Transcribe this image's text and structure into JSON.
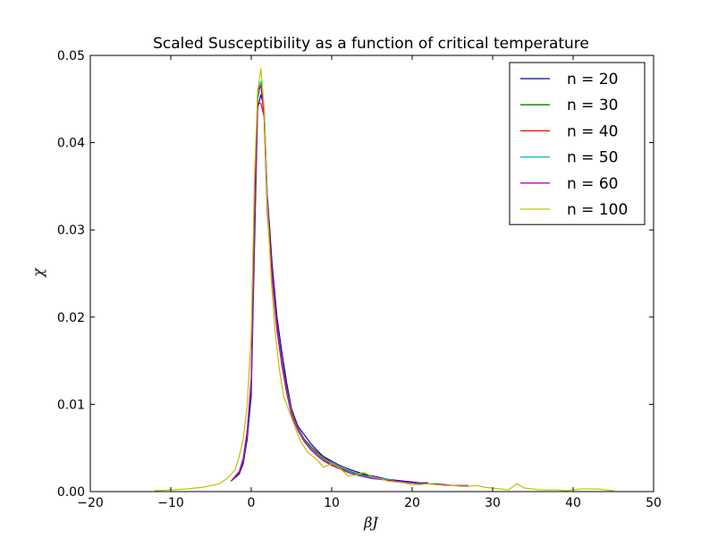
{
  "chart_data": {
    "type": "line",
    "title": "Scaled Susceptibility as a function of critical temperature",
    "xlabel": "βJ",
    "ylabel": "χ",
    "xlim": [
      -20,
      50
    ],
    "ylim": [
      0,
      0.05
    ],
    "xticks": [
      -20,
      -10,
      0,
      10,
      20,
      30,
      40,
      50
    ],
    "yticks": [
      0.0,
      0.01,
      0.02,
      0.03,
      0.04,
      0.05
    ],
    "xtick_labels": [
      "−20",
      "−10",
      "0",
      "10",
      "20",
      "30",
      "40",
      "50"
    ],
    "ytick_labels": [
      "0.00",
      "0.01",
      "0.02",
      "0.03",
      "0.04",
      "0.05"
    ],
    "grid": false,
    "legend_position": "top-right",
    "series": [
      {
        "name": "n = 20",
        "color": "#0000bf",
        "x": [
          -2.5,
          -1.5,
          -1,
          -0.5,
          0,
          0.4,
          0.8,
          1.2,
          1.6,
          2,
          2.6,
          3.2,
          3.8,
          4.4,
          5,
          5.8,
          6.6,
          7.4,
          8.2,
          9,
          10,
          11,
          12,
          13,
          14,
          15,
          16,
          17,
          18,
          19,
          20,
          21,
          22
        ],
        "y": [
          0.0012,
          0.002,
          0.0032,
          0.006,
          0.011,
          0.028,
          0.044,
          0.0455,
          0.044,
          0.034,
          0.026,
          0.02,
          0.016,
          0.0125,
          0.0095,
          0.0075,
          0.0065,
          0.0055,
          0.0047,
          0.004,
          0.0035,
          0.003,
          0.0026,
          0.0023,
          0.002,
          0.0018,
          0.0016,
          0.0014,
          0.0013,
          0.0012,
          0.0011,
          0.001,
          0.001
        ]
      },
      {
        "name": "n = 30",
        "color": "#008000",
        "x": [
          -2.5,
          -1.5,
          -1,
          -0.5,
          0,
          0.4,
          0.8,
          1.2,
          1.6,
          2,
          2.6,
          3.2,
          3.8,
          4.4,
          5,
          5.8,
          6.6,
          7.4,
          8.2,
          9,
          10,
          11,
          12,
          13,
          14,
          15,
          16,
          17,
          18,
          19,
          20,
          21,
          22,
          23,
          24
        ],
        "y": [
          0.0012,
          0.0022,
          0.0035,
          0.0065,
          0.012,
          0.03,
          0.045,
          0.047,
          0.044,
          0.033,
          0.025,
          0.019,
          0.015,
          0.012,
          0.0093,
          0.0073,
          0.006,
          0.0052,
          0.0045,
          0.0039,
          0.0033,
          0.0028,
          0.0024,
          0.0021,
          0.0019,
          0.0017,
          0.0015,
          0.0014,
          0.0012,
          0.0011,
          0.001,
          0.001,
          0.0009,
          0.0009,
          0.0008
        ]
      },
      {
        "name": "n = 40",
        "color": "#ff0000",
        "x": [
          -2.5,
          -1.5,
          -1,
          -0.5,
          0,
          0.4,
          0.8,
          1.2,
          1.6,
          2,
          2.6,
          3.2,
          3.8,
          4.4,
          5,
          5.8,
          6.6,
          7.4,
          8.2,
          9,
          10,
          11,
          12,
          13,
          14,
          15,
          16,
          17,
          18,
          19,
          20,
          21,
          22,
          23,
          24,
          25,
          26
        ],
        "y": [
          0.0012,
          0.0022,
          0.0036,
          0.0068,
          0.0125,
          0.031,
          0.0445,
          0.0445,
          0.043,
          0.033,
          0.025,
          0.019,
          0.0148,
          0.0118,
          0.0092,
          0.0072,
          0.0059,
          0.005,
          0.0043,
          0.0037,
          0.0031,
          0.0027,
          0.0023,
          0.002,
          0.0018,
          0.0016,
          0.0014,
          0.0013,
          0.0012,
          0.0011,
          0.001,
          0.0009,
          0.0009,
          0.0008,
          0.0008,
          0.0007,
          0.0007
        ]
      },
      {
        "name": "n = 50",
        "color": "#00bfbf",
        "x": [
          -2.5,
          -1.5,
          -1,
          -0.5,
          0,
          0.4,
          0.8,
          1.2,
          1.6,
          2,
          2.6,
          3.2,
          3.8,
          4.4,
          5,
          5.8,
          6.6,
          7.4,
          8.2,
          9,
          10,
          11,
          12,
          13,
          14,
          15,
          16,
          17,
          18,
          19,
          20,
          21,
          22,
          23,
          24,
          25,
          26,
          27
        ],
        "y": [
          0.0012,
          0.0023,
          0.0038,
          0.007,
          0.013,
          0.032,
          0.046,
          0.047,
          0.0435,
          0.032,
          0.024,
          0.0185,
          0.0145,
          0.0115,
          0.009,
          0.0071,
          0.0058,
          0.0049,
          0.0042,
          0.0036,
          0.003,
          0.0026,
          0.0023,
          0.002,
          0.0018,
          0.0016,
          0.0015,
          0.0014,
          0.0012,
          0.0011,
          0.001,
          0.0009,
          0.0009,
          0.0008,
          0.0008,
          0.0007,
          0.0007,
          0.0007
        ]
      },
      {
        "name": "n = 60",
        "color": "#bf00bf",
        "x": [
          -2.5,
          -1.5,
          -1,
          -0.5,
          0,
          0.4,
          0.8,
          1.2,
          1.6,
          2,
          2.6,
          3.2,
          3.8,
          4.4,
          5,
          5.8,
          6.6,
          7.4,
          8.2,
          9,
          10,
          11,
          12,
          13,
          14,
          15,
          16,
          17,
          18,
          19,
          20,
          21,
          22,
          23,
          24,
          25,
          26,
          27
        ],
        "y": [
          0.0012,
          0.0023,
          0.0038,
          0.007,
          0.013,
          0.032,
          0.046,
          0.0465,
          0.043,
          0.032,
          0.0245,
          0.0185,
          0.0145,
          0.0113,
          0.0088,
          0.007,
          0.0057,
          0.0048,
          0.0041,
          0.0035,
          0.003,
          0.0026,
          0.0022,
          0.0019,
          0.0017,
          0.0015,
          0.0014,
          0.0013,
          0.0012,
          0.0011,
          0.001,
          0.0009,
          0.0009,
          0.0008,
          0.0008,
          0.0007,
          0.0007,
          0.0007
        ]
      },
      {
        "name": "n = 100",
        "color": "#bfbf00",
        "x": [
          -12,
          -10,
          -8,
          -6,
          -4,
          -3,
          -2,
          -1.5,
          -1,
          -0.5,
          0,
          0.4,
          0.8,
          1.2,
          1.6,
          2,
          2.5,
          3,
          3.5,
          4,
          5,
          6,
          7,
          8,
          9,
          10,
          11,
          12,
          13,
          14,
          15,
          16,
          17,
          18,
          19,
          20,
          21,
          22,
          23,
          24,
          25,
          26,
          27,
          28,
          29,
          30,
          31,
          32,
          33,
          34,
          35,
          36,
          37,
          38,
          39,
          40,
          41,
          42,
          43,
          44,
          45
        ],
        "y": [
          0.0001,
          0.0002,
          0.0003,
          0.0005,
          0.0009,
          0.0015,
          0.0025,
          0.004,
          0.006,
          0.01,
          0.018,
          0.036,
          0.046,
          0.0485,
          0.044,
          0.033,
          0.024,
          0.018,
          0.014,
          0.011,
          0.0085,
          0.006,
          0.0045,
          0.0038,
          0.0028,
          0.0032,
          0.0027,
          0.0018,
          0.0019,
          0.0022,
          0.0017,
          0.0015,
          0.0012,
          0.0011,
          0.001,
          0.0008,
          0.0008,
          0.0009,
          0.0008,
          0.0007,
          0.0007,
          0.0006,
          0.0006,
          0.0007,
          0.0005,
          0.0004,
          0.0003,
          0.0002,
          0.0009,
          0.0004,
          0.0003,
          0.0002,
          0.0002,
          0.0002,
          0.0001,
          0.0002,
          0.0003,
          0.0003,
          0.0003,
          0.0002,
          0.0001
        ]
      }
    ]
  }
}
